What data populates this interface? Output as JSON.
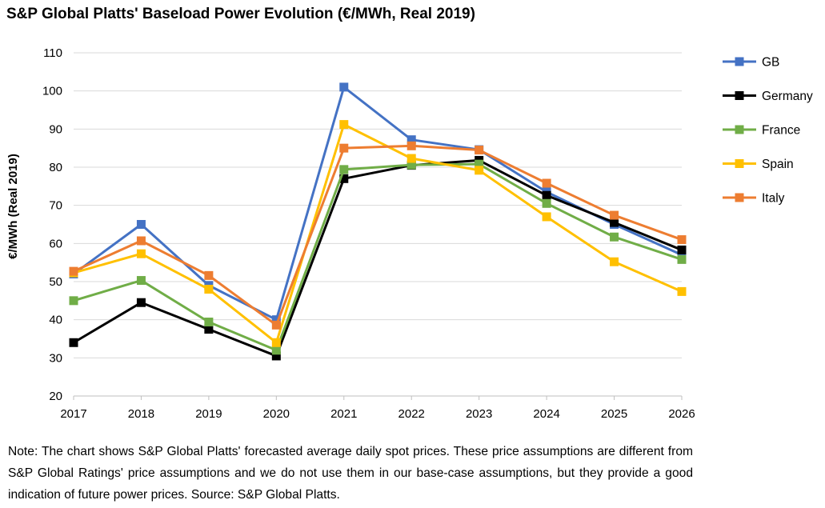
{
  "chart_data": {
    "type": "line",
    "title": "S&P Global Platts' Baseload Power Evolution (€/MWh, Real 2019)",
    "xlabel": "",
    "ylabel": "€/MWh (Real 2019)",
    "ylim": [
      20,
      110
    ],
    "yticks": [
      20,
      30,
      40,
      50,
      60,
      70,
      80,
      90,
      100,
      110
    ],
    "grid": true,
    "legend_position": "right",
    "x": [
      "2017",
      "2018",
      "2019",
      "2020",
      "2021",
      "2022",
      "2023",
      "2024",
      "2025",
      "2026"
    ],
    "series": [
      {
        "name": "GB",
        "color": "#4472C4",
        "values": [
          52,
          65,
          49,
          40,
          101,
          87.2,
          84.6,
          73.5,
          65,
          57
        ]
      },
      {
        "name": "Germany",
        "color": "#000000",
        "values": [
          34,
          44.5,
          37.5,
          30.5,
          77,
          80.5,
          81.8,
          72.6,
          65.5,
          58.3
        ]
      },
      {
        "name": "France",
        "color": "#70AD47",
        "values": [
          45,
          50.3,
          39.4,
          32,
          79.4,
          80.6,
          80.8,
          70.5,
          61.7,
          55.8
        ]
      },
      {
        "name": "Spain",
        "color": "#FFC000",
        "values": [
          52.3,
          57.3,
          48,
          34,
          91.2,
          82.3,
          79.2,
          67,
          55.2,
          47.4
        ]
      },
      {
        "name": "Italy",
        "color": "#ED7D31",
        "values": [
          52.7,
          60.7,
          51.6,
          38.6,
          85,
          85.6,
          84.5,
          75.8,
          67.4,
          61
        ]
      }
    ]
  },
  "note": "Note: The chart shows S&P Global Platts' forecasted average daily spot prices. These price assumptions are different from S&P Global Ratings' price assumptions and we do not use them in our base-case assumptions, but they provide a good indication of future power prices. Source: S&P Global Platts."
}
